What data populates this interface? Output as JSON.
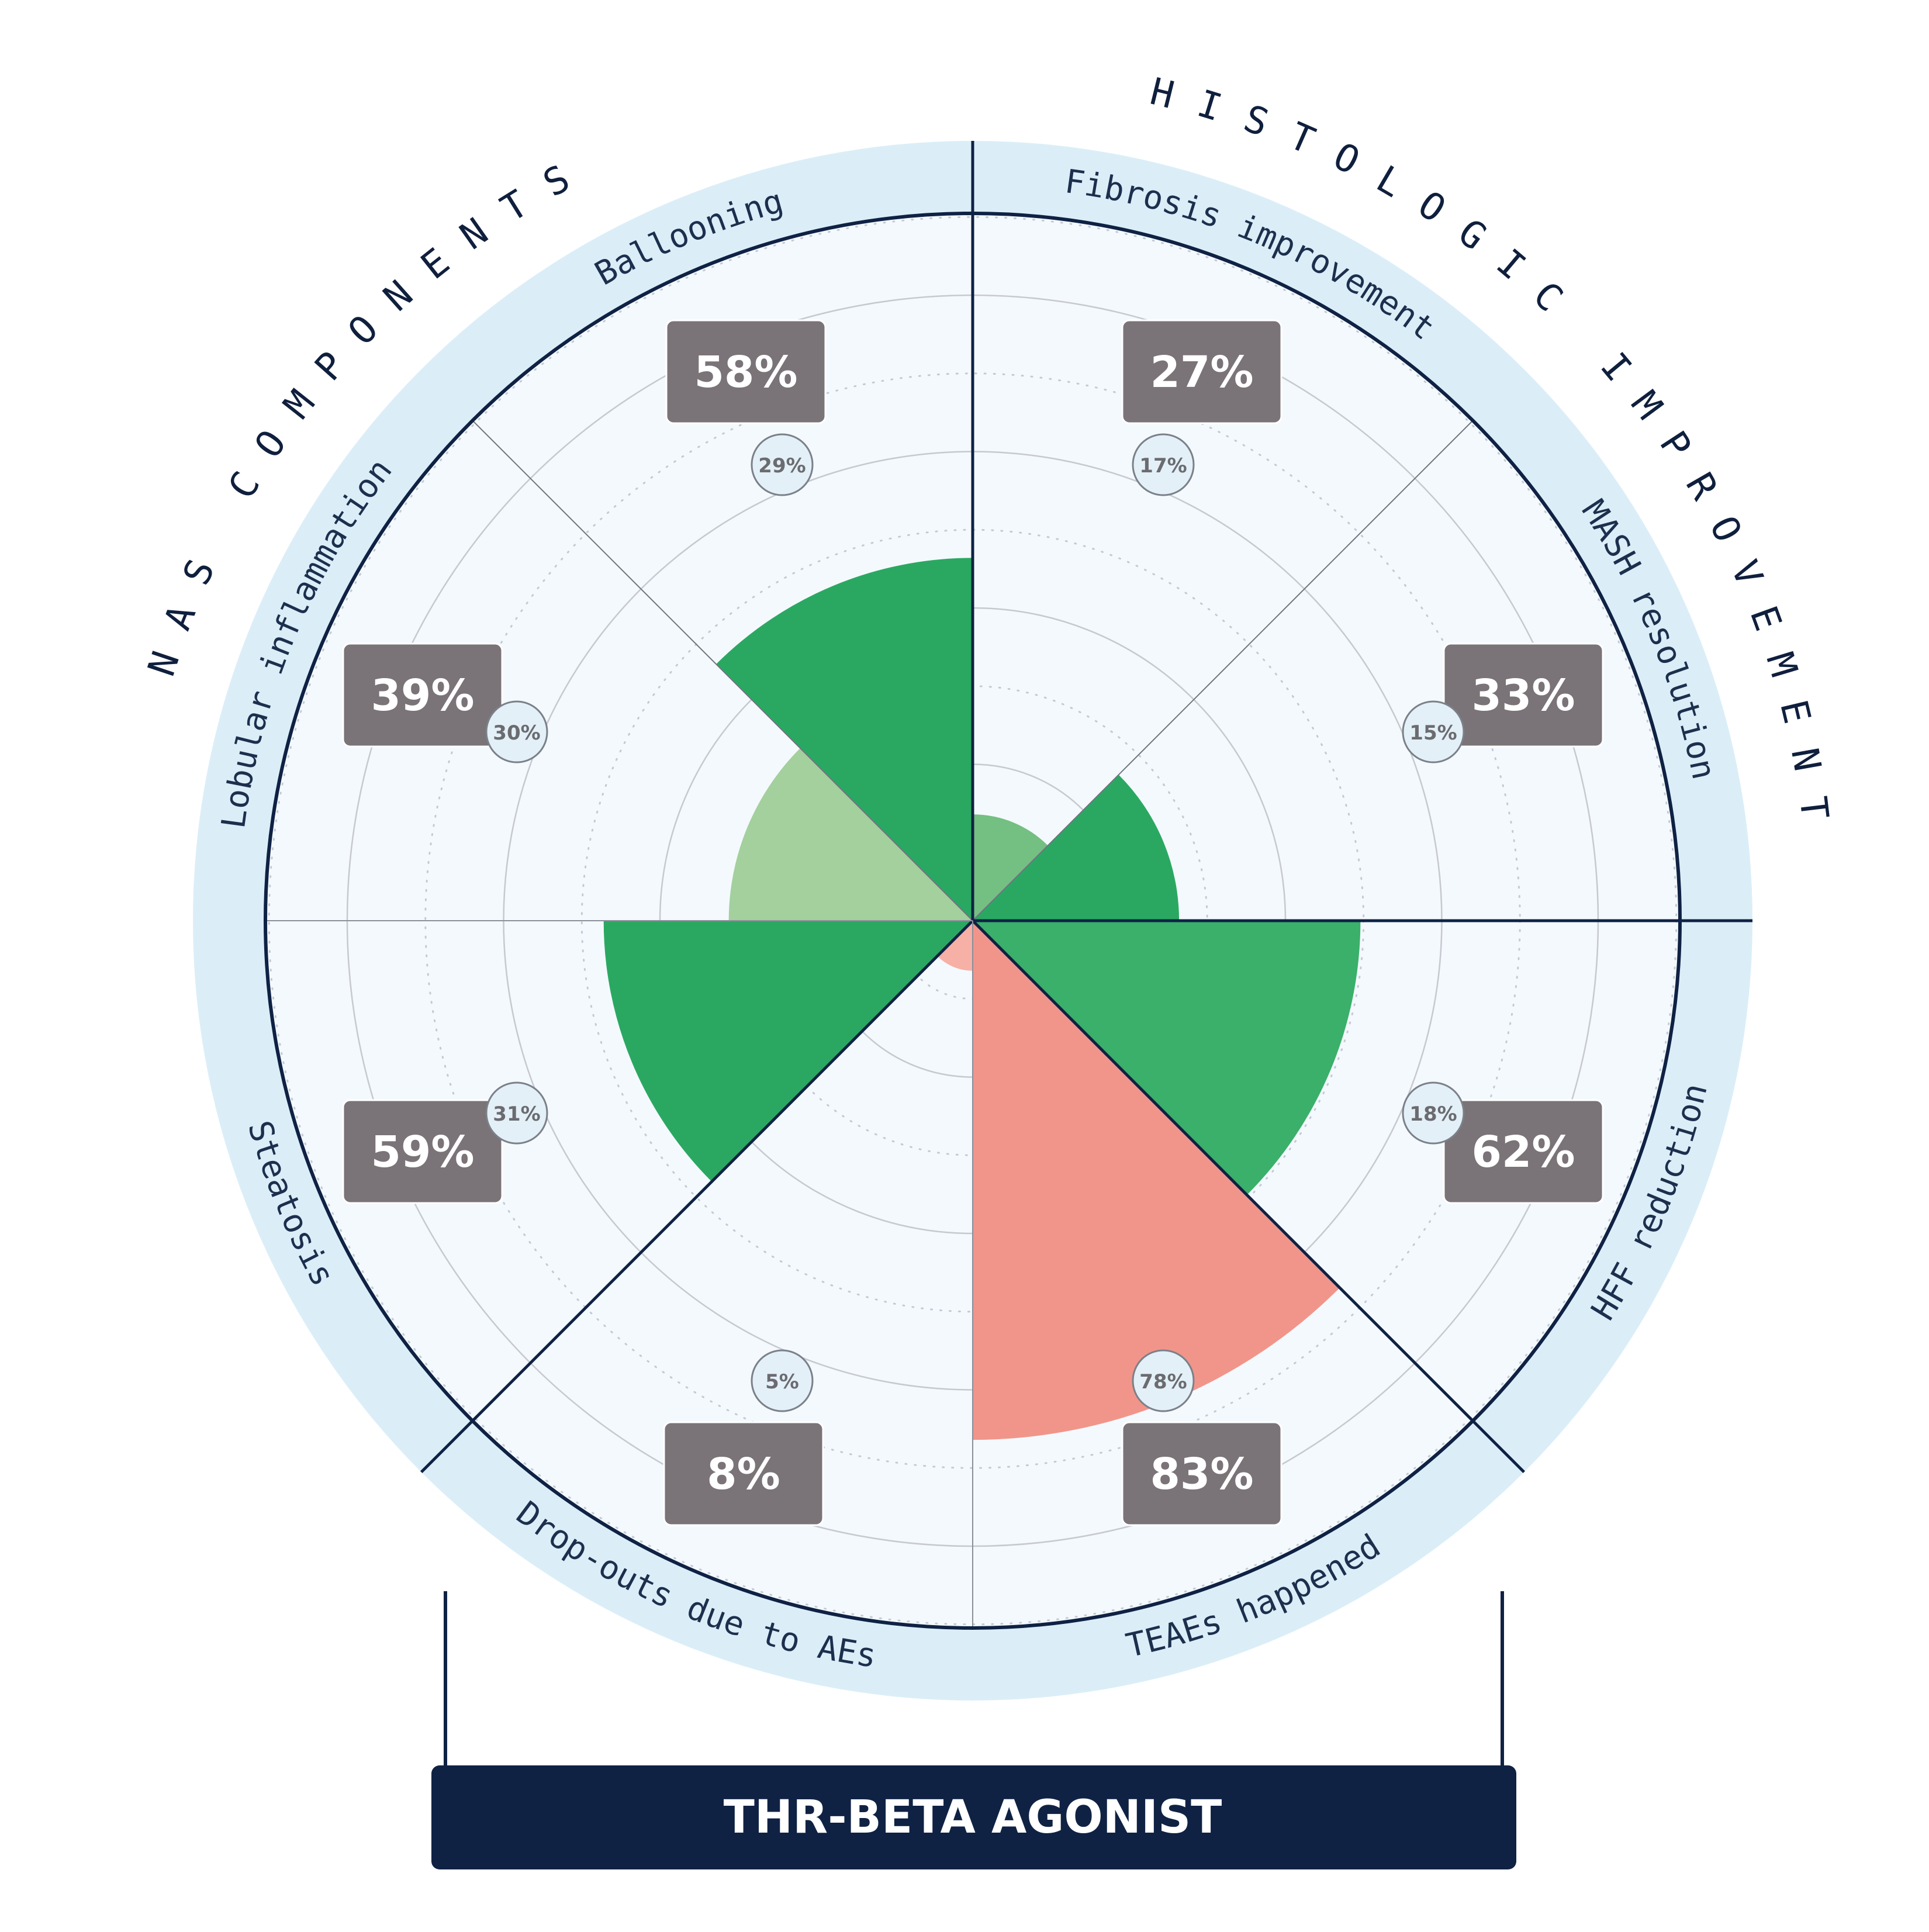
{
  "chart_data": {
    "type": "polar-bar",
    "title": "THR-BETA AGONIST",
    "rlim": [
      0,
      100
    ],
    "groups": [
      {
        "label": "NAS COMPONENTS",
        "categories": [
          "Steatosis",
          "Lobular inflammation",
          "Ballooning"
        ]
      },
      {
        "label": "HISTOLOGIC IMPROVEMENT",
        "categories": [
          "Fibrosis improvement",
          "MASH resolution"
        ]
      }
    ],
    "categories": [
      "Fibrosis improvement",
      "MASH resolution",
      "HFF reduction",
      "TEAEs happened",
      "Drop-outs due to AEs",
      "Steatosis",
      "Lobular inflammation",
      "Ballooning"
    ],
    "values": [
      27,
      33,
      62,
      83,
      8,
      59,
      39,
      58
    ],
    "comparator_values": [
      17,
      15,
      18,
      78,
      5,
      31,
      30,
      29
    ],
    "value_labels": [
      "27%",
      "33%",
      "62%",
      "83%",
      "8%",
      "59%",
      "39%",
      "58%"
    ],
    "comparator_labels": [
      "17%",
      "15%",
      "18%",
      "78%",
      "5%",
      "31%",
      "30%",
      "29%"
    ],
    "colors": {
      "efficacy": "#2aa862",
      "efficacy_mid": "#3ab06a",
      "efficacy_light": "#74bf82",
      "efficacy_pale": "#a3d09d",
      "safety": "#f1958a",
      "safety_comparator": "#f6b0a5",
      "ring": "#dbeef8",
      "panel": "#f4f9fd",
      "navy": "#0f2244",
      "label_box": "#7a7377"
    }
  }
}
